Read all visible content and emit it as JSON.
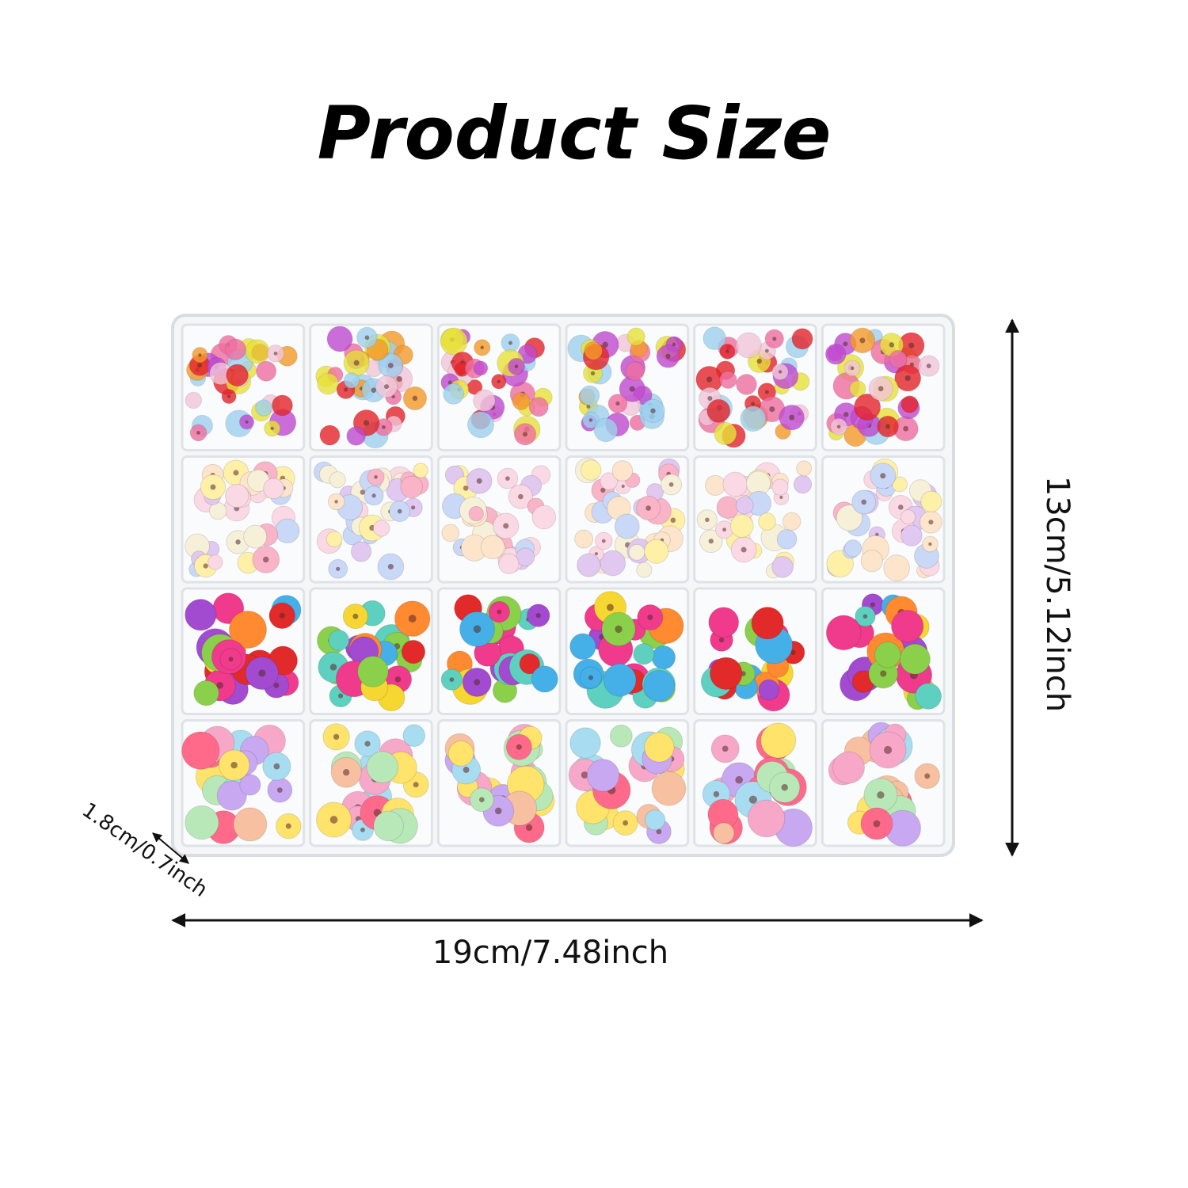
{
  "header": {
    "title": "Product Size"
  },
  "dimensions": {
    "length": "19cm/7.48inch",
    "width": "13cm/5.12inch",
    "height": "1.8cm/0.7inch"
  }
}
